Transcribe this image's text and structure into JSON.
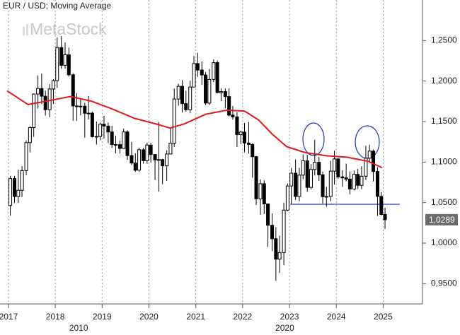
{
  "chart_data": {
    "type": "candlestick",
    "title": "EUR / USD; Moving Average",
    "watermark": "MetaStock",
    "up_color": "#ffffff",
    "down_color": "#000000",
    "grid": true,
    "xlim": [
      2016.82,
      2025.84
    ],
    "xticks": [
      2017,
      2018,
      2019,
      2020,
      2021,
      2022,
      2023,
      2024,
      2025
    ],
    "x2ticks": [
      {
        "value": 2018.5,
        "label": "2010"
      },
      {
        "value": 2022.9,
        "label": "2020"
      }
    ],
    "ylim": [
      0.925,
      1.3
    ],
    "yticks": [
      {
        "value": 0.95,
        "label": "0,9500"
      },
      {
        "value": 1.0,
        "label": "1,0000"
      },
      {
        "value": 1.05,
        "label": "1,0500"
      },
      {
        "value": 1.1,
        "label": "1,1000"
      },
      {
        "value": 1.15,
        "label": "1,1500"
      },
      {
        "value": 1.2,
        "label": "1,2000"
      },
      {
        "value": 1.25,
        "label": "1,2500"
      }
    ],
    "last_price": {
      "value": 1.0289,
      "label": "1,0289"
    },
    "candles": {
      "x": [
        2017.04,
        2017.13,
        2017.21,
        2017.29,
        2017.38,
        2017.46,
        2017.54,
        2017.63,
        2017.71,
        2017.79,
        2017.88,
        2017.96,
        2018.04,
        2018.13,
        2018.21,
        2018.29,
        2018.38,
        2018.46,
        2018.54,
        2018.63,
        2018.71,
        2018.79,
        2018.88,
        2018.96,
        2019.04,
        2019.13,
        2019.21,
        2019.29,
        2019.38,
        2019.46,
        2019.54,
        2019.63,
        2019.71,
        2019.79,
        2019.88,
        2019.96,
        2020.04,
        2020.13,
        2020.21,
        2020.29,
        2020.38,
        2020.46,
        2020.54,
        2020.63,
        2020.71,
        2020.79,
        2020.88,
        2020.96,
        2021.04,
        2021.13,
        2021.21,
        2021.29,
        2021.38,
        2021.46,
        2021.54,
        2021.63,
        2021.71,
        2021.79,
        2021.88,
        2021.96,
        2022.04,
        2022.13,
        2022.21,
        2022.29,
        2022.38,
        2022.46,
        2022.54,
        2022.63,
        2022.71,
        2022.79,
        2022.88,
        2022.96,
        2023.04,
        2023.13,
        2023.21,
        2023.29,
        2023.38,
        2023.46,
        2023.54,
        2023.63,
        2023.71,
        2023.79,
        2023.88,
        2023.96,
        2024.04,
        2024.13,
        2024.21,
        2024.29,
        2024.38,
        2024.46,
        2024.54,
        2024.63,
        2024.71,
        2024.79,
        2024.88,
        2024.96,
        2025.04
      ],
      "open": [
        1.0465,
        1.0797,
        1.0575,
        1.0652,
        1.0895,
        1.124,
        1.1425,
        1.184,
        1.1908,
        1.1813,
        1.1646,
        1.1902,
        1.2005,
        1.2413,
        1.2194,
        1.2324,
        1.2077,
        1.1693,
        1.1684,
        1.169,
        1.1603,
        1.1604,
        1.1313,
        1.1316,
        1.1467,
        1.1444,
        1.1372,
        1.1217,
        1.1215,
        1.1169,
        1.1372,
        1.108,
        1.0988,
        1.09,
        1.1152,
        1.1017,
        1.121,
        1.1093,
        1.1027,
        1.1031,
        1.0954,
        1.11,
        1.1233,
        1.1778,
        1.1935,
        1.1721,
        1.1646,
        1.1926,
        1.2216,
        1.2136,
        1.2075,
        1.1728,
        1.202,
        1.2227,
        1.1858,
        1.187,
        1.1808,
        1.158,
        1.1558,
        1.1338,
        1.137,
        1.1235,
        1.1218,
        1.1067,
        1.0545,
        1.0733,
        1.0484,
        1.022,
        1.0054,
        0.9802,
        0.9884,
        1.0407,
        1.0705,
        1.0863,
        1.0576,
        1.0839,
        1.1016,
        1.0688,
        1.0909,
        1.0998,
        1.0843,
        1.0573,
        1.0576,
        1.0888,
        1.1039,
        1.0818,
        1.0805,
        1.079,
        1.0667,
        1.0848,
        1.0713,
        1.0826,
        1.1048,
        1.1135,
        1.0884,
        1.0577,
        1.0354
      ],
      "high": [
        1.0829,
        1.0829,
        1.0906,
        1.095,
        1.1268,
        1.1445,
        1.1846,
        1.207,
        1.2092,
        1.188,
        1.1961,
        1.2023,
        1.2537,
        1.2555,
        1.2476,
        1.2414,
        1.2097,
        1.1852,
        1.1791,
        1.1733,
        1.1815,
        1.1622,
        1.15,
        1.1486,
        1.157,
        1.1489,
        1.1448,
        1.1324,
        1.1264,
        1.1412,
        1.1393,
        1.1249,
        1.1109,
        1.1179,
        1.1175,
        1.124,
        1.1239,
        1.1095,
        1.1495,
        1.104,
        1.1146,
        1.1422,
        1.1908,
        1.1966,
        1.2011,
        1.1881,
        1.2004,
        1.231,
        1.2349,
        1.2243,
        1.2113,
        1.215,
        1.2266,
        1.2254,
        1.1909,
        1.1909,
        1.1909,
        1.1692,
        1.1616,
        1.1386,
        1.1483,
        1.1495,
        1.1233,
        1.1076,
        1.0787,
        1.0774,
        1.0486,
        1.0368,
        1.0198,
        1.0094,
        1.0497,
        1.0736,
        1.0929,
        1.1033,
        1.093,
        1.1095,
        1.1092,
        1.0976,
        1.1276,
        1.1065,
        1.0882,
        1.0695,
        1.1017,
        1.114,
        1.1046,
        1.0898,
        1.0981,
        1.0885,
        1.0895,
        1.0916,
        1.0948,
        1.1202,
        1.1214,
        1.1154,
        1.0937,
        1.063,
        1.0437
      ],
      "low": [
        1.034,
        1.0494,
        1.0495,
        1.057,
        1.0839,
        1.1119,
        1.1312,
        1.1662,
        1.1717,
        1.1575,
        1.1554,
        1.1717,
        1.1916,
        1.2154,
        1.2155,
        1.2055,
        1.151,
        1.1508,
        1.1576,
        1.1301,
        1.1526,
        1.1302,
        1.1216,
        1.1269,
        1.1289,
        1.1234,
        1.1177,
        1.111,
        1.1107,
        1.116,
        1.1028,
        1.0964,
        1.0879,
        1.0879,
        1.0981,
        1.0981,
        1.0992,
        1.0778,
        1.0636,
        1.0727,
        1.0767,
        1.1094,
        1.1185,
        1.1696,
        1.1612,
        1.1622,
        1.1603,
        1.1925,
        1.2052,
        1.1952,
        1.1704,
        1.1704,
        1.1986,
        1.1847,
        1.1752,
        1.1664,
        1.1563,
        1.1524,
        1.1186,
        1.1222,
        1.1121,
        1.1106,
        1.0806,
        1.0471,
        1.0349,
        1.0359,
        0.9952,
        0.9901,
        0.9536,
        0.9632,
        0.973,
        1.0393,
        1.0482,
        1.0533,
        1.0516,
        1.0788,
        1.0635,
        1.0662,
        1.0834,
        1.0766,
        1.0488,
        1.0448,
        1.0516,
        1.0723,
        1.0795,
        1.0695,
        1.0762,
        1.0601,
        1.065,
        1.0668,
        1.0666,
        1.0778,
        1.1001,
        1.0761,
        1.0335,
        1.0343,
        1.0177
      ],
      "close": [
        1.0797,
        1.0575,
        1.0652,
        1.0895,
        1.124,
        1.1425,
        1.184,
        1.1908,
        1.1813,
        1.1646,
        1.1902,
        1.2005,
        1.2413,
        1.2194,
        1.2324,
        1.2077,
        1.1693,
        1.1684,
        1.169,
        1.1603,
        1.1604,
        1.1313,
        1.1316,
        1.1467,
        1.1444,
        1.1372,
        1.1217,
        1.1215,
        1.1169,
        1.1372,
        1.108,
        1.0988,
        1.09,
        1.1152,
        1.1017,
        1.121,
        1.1093,
        1.1027,
        1.1031,
        1.0954,
        1.11,
        1.1233,
        1.1778,
        1.1935,
        1.1721,
        1.1646,
        1.1926,
        1.2216,
        1.2136,
        1.2075,
        1.1728,
        1.202,
        1.2227,
        1.1858,
        1.187,
        1.1808,
        1.158,
        1.1558,
        1.1338,
        1.137,
        1.1235,
        1.1218,
        1.1067,
        1.0545,
        1.0733,
        1.0484,
        1.022,
        1.0054,
        0.9802,
        0.9884,
        1.0407,
        1.0705,
        1.0863,
        1.0576,
        1.0839,
        1.1016,
        1.0688,
        1.0909,
        1.0998,
        1.0843,
        1.0573,
        1.0576,
        1.0888,
        1.1039,
        1.0818,
        1.0805,
        1.079,
        1.0667,
        1.0848,
        1.0713,
        1.0826,
        1.1048,
        1.1135,
        1.0884,
        1.0577,
        1.0354,
        1.0289
      ]
    },
    "moving_average": {
      "color": "#e0191f",
      "x": [
        2016.97,
        2017.42,
        2017.88,
        2018.33,
        2018.78,
        2019.24,
        2019.69,
        2020.15,
        2020.45,
        2020.75,
        2021.21,
        2021.66,
        2022.04,
        2022.34,
        2022.64,
        2022.94,
        2023.32,
        2023.77,
        2024.23,
        2024.68,
        2024.98
      ],
      "values": [
        1.188,
        1.171,
        1.176,
        1.181,
        1.175,
        1.165,
        1.154,
        1.147,
        1.142,
        1.147,
        1.159,
        1.164,
        1.163,
        1.152,
        1.134,
        1.119,
        1.112,
        1.108,
        1.106,
        1.101,
        1.093
      ]
    }
  }
}
